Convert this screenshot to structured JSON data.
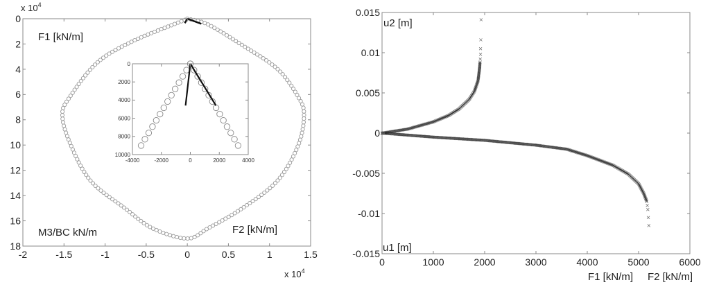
{
  "chart_data": [
    {
      "type": "scatter",
      "title": "",
      "x_exponent_label": "x 10",
      "x_exponent_power": "4",
      "y_exponent_label": "x 10",
      "y_exponent_power": "4",
      "xlim": [
        -2,
        1.5
      ],
      "ylim": [
        0,
        18
      ],
      "y_reversed": true,
      "xticks": [
        "-2",
        "-1.5",
        "-1",
        "-0.5",
        "0",
        "0.5",
        "1",
        "1.5"
      ],
      "xtick_values": [
        -2,
        -1.5,
        -1,
        -0.5,
        0,
        0.5,
        1,
        1.5
      ],
      "yticks": [
        "0",
        "2",
        "4",
        "6",
        "8",
        "10",
        "12",
        "14",
        "16",
        "18"
      ],
      "ytick_values": [
        0,
        2,
        4,
        6,
        8,
        10,
        12,
        14,
        16,
        18
      ],
      "annotations": [
        "F1 [kN/m]",
        "M3/BC kN/m",
        "F2 [kN/m]"
      ],
      "marker": "circle",
      "series": [
        {
          "name": "envelope",
          "style": "circles",
          "points": [
            [
              0,
              0
            ],
            [
              -0.07,
              0.2
            ],
            [
              -0.67,
              1.8
            ],
            [
              -1.1,
              3.5
            ],
            [
              -1.43,
              6.2
            ],
            [
              -1.52,
              7.6
            ],
            [
              -1.43,
              9.8
            ],
            [
              -1.18,
              12.8
            ],
            [
              -0.76,
              15.0
            ],
            [
              -0.42,
              16.6
            ],
            [
              0,
              17.4
            ],
            [
              0.25,
              16.6
            ],
            [
              0.67,
              15.0
            ],
            [
              1.1,
              12.8
            ],
            [
              1.35,
              10.0
            ],
            [
              1.42,
              7.6
            ],
            [
              1.35,
              6.2
            ],
            [
              1.1,
              4.0
            ],
            [
              0.67,
              2.1
            ],
            [
              0.25,
              0.45
            ],
            [
              0,
              0
            ]
          ]
        },
        {
          "name": "path-1",
          "style": "line",
          "points": [
            [
              0,
              0
            ],
            [
              -0.03,
              0.35
            ]
          ]
        },
        {
          "name": "path-2",
          "style": "line",
          "points": [
            [
              0,
              0
            ],
            [
              0.17,
              0.4
            ]
          ]
        }
      ],
      "inset": {
        "xlim": [
          -4000,
          4000
        ],
        "ylim": [
          0,
          10000
        ],
        "y_reversed": true,
        "xticks": [
          "-4000",
          "-2000",
          "0",
          "2000",
          "4000"
        ],
        "xtick_values": [
          -4000,
          -2000,
          0,
          2000,
          4000
        ],
        "yticks": [
          "0",
          "2000",
          "4000",
          "6000",
          "8000",
          "10000"
        ],
        "ytick_values": [
          0,
          2000,
          4000,
          6000,
          8000,
          10000
        ],
        "series": [
          {
            "name": "envelope-zoom",
            "style": "circles",
            "points": [
              [
                -3400,
                9000
              ],
              [
                0,
                0
              ],
              [
                3300,
                9000
              ]
            ],
            "count_per_side": 13
          },
          {
            "name": "path-1-zoom",
            "style": "line",
            "points": [
              [
                0,
                0
              ],
              [
                -330,
                4600
              ]
            ]
          },
          {
            "name": "path-2-zoom",
            "style": "line",
            "points": [
              [
                0,
                0
              ],
              [
                1770,
                4600
              ]
            ]
          }
        ]
      }
    },
    {
      "type": "scatter",
      "title": "",
      "xlim": [
        0,
        6000
      ],
      "ylim": [
        -0.015,
        0.015
      ],
      "xticks": [
        "0",
        "1000",
        "2000",
        "3000",
        "4000",
        "5000",
        "6000"
      ],
      "xtick_values": [
        0,
        1000,
        2000,
        3000,
        4000,
        5000,
        6000
      ],
      "yticks": [
        "0.015",
        "0.01",
        "0.005",
        "0",
        "-0.005",
        "-0.01",
        "-0.015"
      ],
      "ytick_values": [
        0.015,
        0.01,
        0.005,
        0,
        -0.005,
        -0.01,
        -0.015
      ],
      "xlabels": [
        "F1 [kN/m]",
        "F2 [kN/m]"
      ],
      "annotations": [
        "u2 [m]",
        "u1 [m]"
      ],
      "marker": "x",
      "series": [
        {
          "name": "u2 vs F2",
          "points": [
            [
              0,
              0
            ],
            [
              500,
              0.0005
            ],
            [
              1000,
              0.0014
            ],
            [
              1300,
              0.0022
            ],
            [
              1500,
              0.003
            ],
            [
              1700,
              0.0042
            ],
            [
              1800,
              0.0052
            ],
            [
              1870,
              0.0065
            ],
            [
              1900,
              0.008
            ],
            [
              1910,
              0.0088
            ]
          ],
          "sparse_tail": [
            [
              1915,
              0.0092
            ],
            [
              1920,
              0.0098
            ],
            [
              1920,
              0.0105
            ],
            [
              1925,
              0.0116
            ],
            [
              1930,
              0.0141
            ]
          ]
        },
        {
          "name": "u1 vs F1",
          "points": [
            [
              0,
              0
            ],
            [
              1000,
              -0.0005
            ],
            [
              2000,
              -0.0009
            ],
            [
              3000,
              -0.0015
            ],
            [
              3600,
              -0.002
            ],
            [
              4000,
              -0.0028
            ],
            [
              4500,
              -0.004
            ],
            [
              4800,
              -0.0051
            ],
            [
              5000,
              -0.0063
            ],
            [
              5100,
              -0.0075
            ],
            [
              5160,
              -0.0085
            ]
          ],
          "sparse_tail": [
            [
              5170,
              -0.009
            ],
            [
              5180,
              -0.0095
            ],
            [
              5190,
              -0.0105
            ],
            [
              5200,
              -0.0115
            ]
          ]
        }
      ]
    }
  ]
}
